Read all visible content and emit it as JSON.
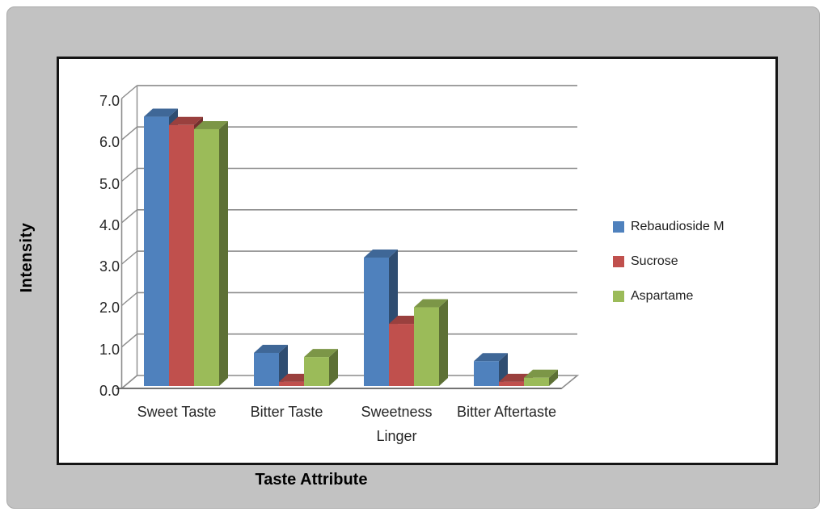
{
  "colors": {
    "background_panel": "#c2c2c2",
    "plot_background": "#ffffff",
    "chart_border": "#141414",
    "gridline": "#8c8c8c",
    "tick_text": "#262626"
  },
  "chart_data": {
    "type": "bar",
    "style": "3d-clustered-column",
    "title": "",
    "xlabel": "Taste Attribute",
    "ylabel": "Intensity",
    "categories": [
      "Sweet Taste",
      "Bitter Taste",
      "Sweetness Linger",
      "Bitter Aftertaste"
    ],
    "series": [
      {
        "name": "Rebaudioside M",
        "color": "#4F81BD",
        "values": [
          6.5,
          0.8,
          3.1,
          0.6
        ]
      },
      {
        "name": "Sucrose",
        "color": "#C0504D",
        "values": [
          6.3,
          0.1,
          1.5,
          0.1
        ]
      },
      {
        "name": "Aspartame",
        "color": "#9BBB59",
        "values": [
          6.2,
          0.7,
          1.9,
          0.2
        ]
      }
    ],
    "ylim": [
      0,
      7
    ],
    "ytick_step": 1,
    "ytick_labels": [
      "0.0",
      "1.0",
      "2.0",
      "3.0",
      "4.0",
      "5.0",
      "6.0",
      "7.0"
    ],
    "grid": true,
    "legend_position": "right"
  }
}
